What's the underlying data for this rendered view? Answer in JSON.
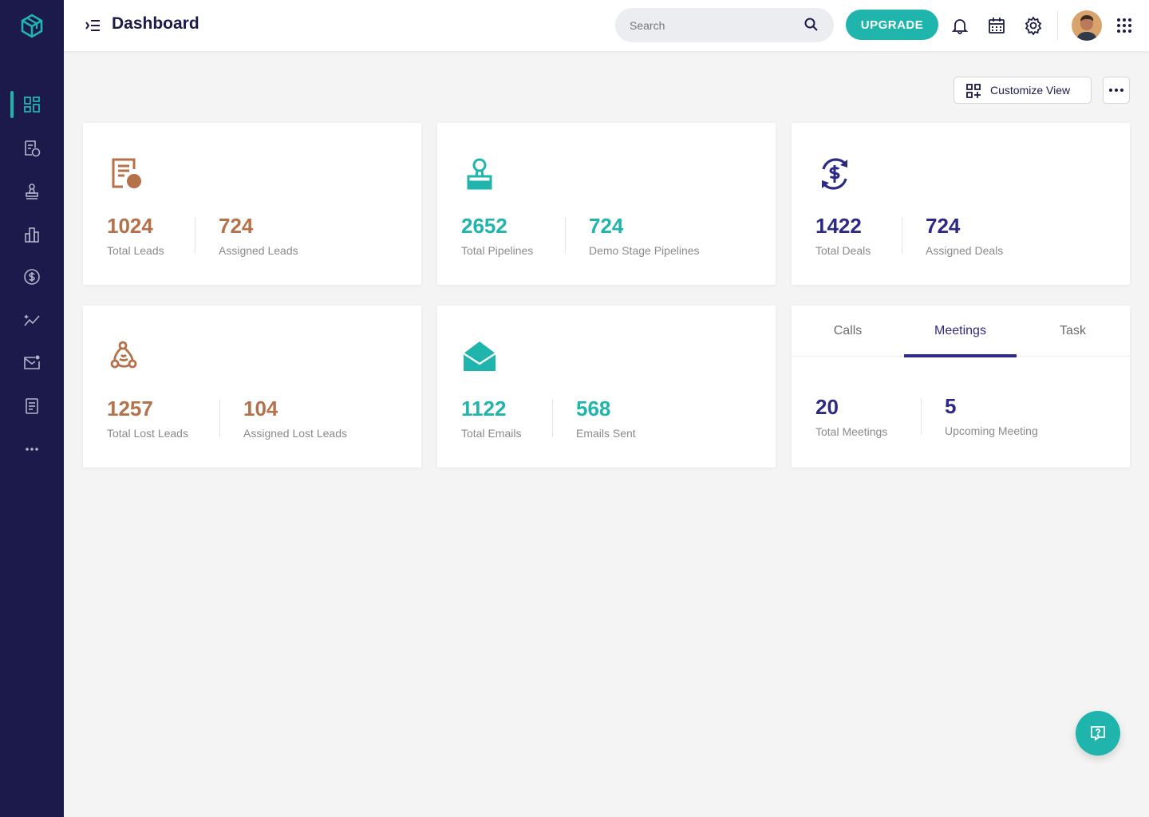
{
  "header": {
    "title": "Dashboard",
    "search_placeholder": "Search",
    "upgrade_label": "UPGRADE"
  },
  "toolbar": {
    "customize_label": "Customize View"
  },
  "sidebar": {
    "items": [
      {
        "name": "dashboard-icon",
        "active": true
      },
      {
        "name": "leads-icon",
        "active": false
      },
      {
        "name": "pipelines-icon",
        "active": false
      },
      {
        "name": "reports-icon",
        "active": false
      },
      {
        "name": "deals-icon",
        "active": false
      },
      {
        "name": "analytics-icon",
        "active": false
      },
      {
        "name": "email-icon",
        "active": false
      },
      {
        "name": "documents-icon",
        "active": false
      },
      {
        "name": "more-icon",
        "active": false
      }
    ]
  },
  "cards": {
    "leads": {
      "total": "1024",
      "total_label": "Total Leads",
      "assigned": "724",
      "assigned_label": "Assigned Leads"
    },
    "pipelines": {
      "total": "2652",
      "total_label": "Total Pipelines",
      "demo": "724",
      "demo_label": "Demo Stage Pipelines"
    },
    "deals": {
      "total": "1422",
      "total_label": "Total Deals",
      "assigned": "724",
      "assigned_label": "Assigned Deals"
    },
    "lost_leads": {
      "total": "1257",
      "total_label": "Total Lost Leads",
      "assigned": "104",
      "assigned_label": "Assigned Lost Leads"
    },
    "emails": {
      "total": "1122",
      "total_label": "Total Emails",
      "sent": "568",
      "sent_label": "Emails Sent"
    },
    "activities": {
      "tabs": [
        "Calls",
        "Meetings",
        "Task"
      ],
      "active_tab": "Meetings",
      "total": "20",
      "total_label": "Total Meetings",
      "upcoming": "5",
      "upcoming_label": "Upcoming Meeting"
    }
  },
  "colors": {
    "sidebar": "#1b1a4b",
    "accent_teal": "#1fb5ad",
    "leads_brown": "#b5714a",
    "deals_navy": "#2d2a86"
  }
}
